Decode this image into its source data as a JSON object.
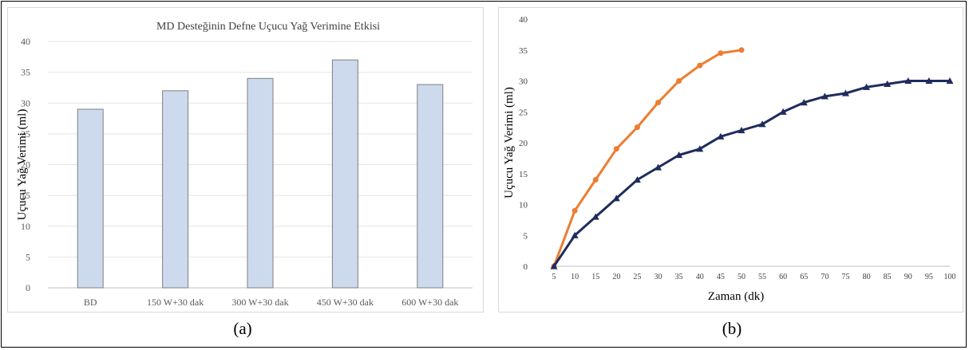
{
  "captions": {
    "a": "(a)",
    "b": "(b)"
  },
  "colors": {
    "bar_fill": "#cdd9ec",
    "bar_stroke": "#7f7f7f",
    "grid": "#e4e4e4",
    "series_orange": "#ed7d31",
    "series_navy": "#1f2c5c"
  },
  "chart_data": [
    {
      "type": "bar",
      "title": "MD Desteğinin Defne Uçucu Yağ Verimine Etkisi",
      "xlabel": "",
      "ylabel": "Uçucu Yağ Verimi (ml)",
      "categories": [
        "BD",
        "150 W+30 dak",
        "300 W+30 dak",
        "450 W+30 dak",
        "600 W+30 dak"
      ],
      "values": [
        29,
        32,
        34,
        37,
        33
      ],
      "ylim": [
        0,
        40
      ],
      "yticks": [
        0,
        5,
        10,
        15,
        20,
        25,
        30,
        35,
        40
      ],
      "grid": true,
      "legend": "none"
    },
    {
      "type": "line",
      "title": "",
      "xlabel": "Zaman (dk)",
      "ylabel": "Uçucu Yağ Verimi (ml)",
      "x": [
        5,
        10,
        15,
        20,
        25,
        30,
        35,
        40,
        45,
        50,
        55,
        60,
        65,
        70,
        75,
        80,
        85,
        90,
        95,
        100
      ],
      "ylim": [
        0,
        40
      ],
      "yticks": [
        0,
        5,
        10,
        15,
        20,
        25,
        30,
        35,
        40
      ],
      "grid": false,
      "legend": "none",
      "series": [
        {
          "color": "#ed7d31",
          "marker": "circle",
          "x": [
            5,
            10,
            15,
            20,
            25,
            30,
            35,
            40,
            45,
            50
          ],
          "values": [
            0,
            9,
            14,
            19,
            22.5,
            26.5,
            30,
            32.5,
            34.5,
            35
          ]
        },
        {
          "color": "#1f2c5c",
          "marker": "triangle",
          "x": [
            5,
            10,
            15,
            20,
            25,
            30,
            35,
            40,
            45,
            50,
            55,
            60,
            65,
            70,
            75,
            80,
            85,
            90,
            95,
            100
          ],
          "values": [
            0,
            5,
            8,
            11,
            14,
            16,
            18,
            19,
            21,
            22,
            23,
            25,
            26.5,
            27.5,
            28,
            29,
            29.5,
            30,
            30,
            30
          ]
        }
      ]
    }
  ]
}
